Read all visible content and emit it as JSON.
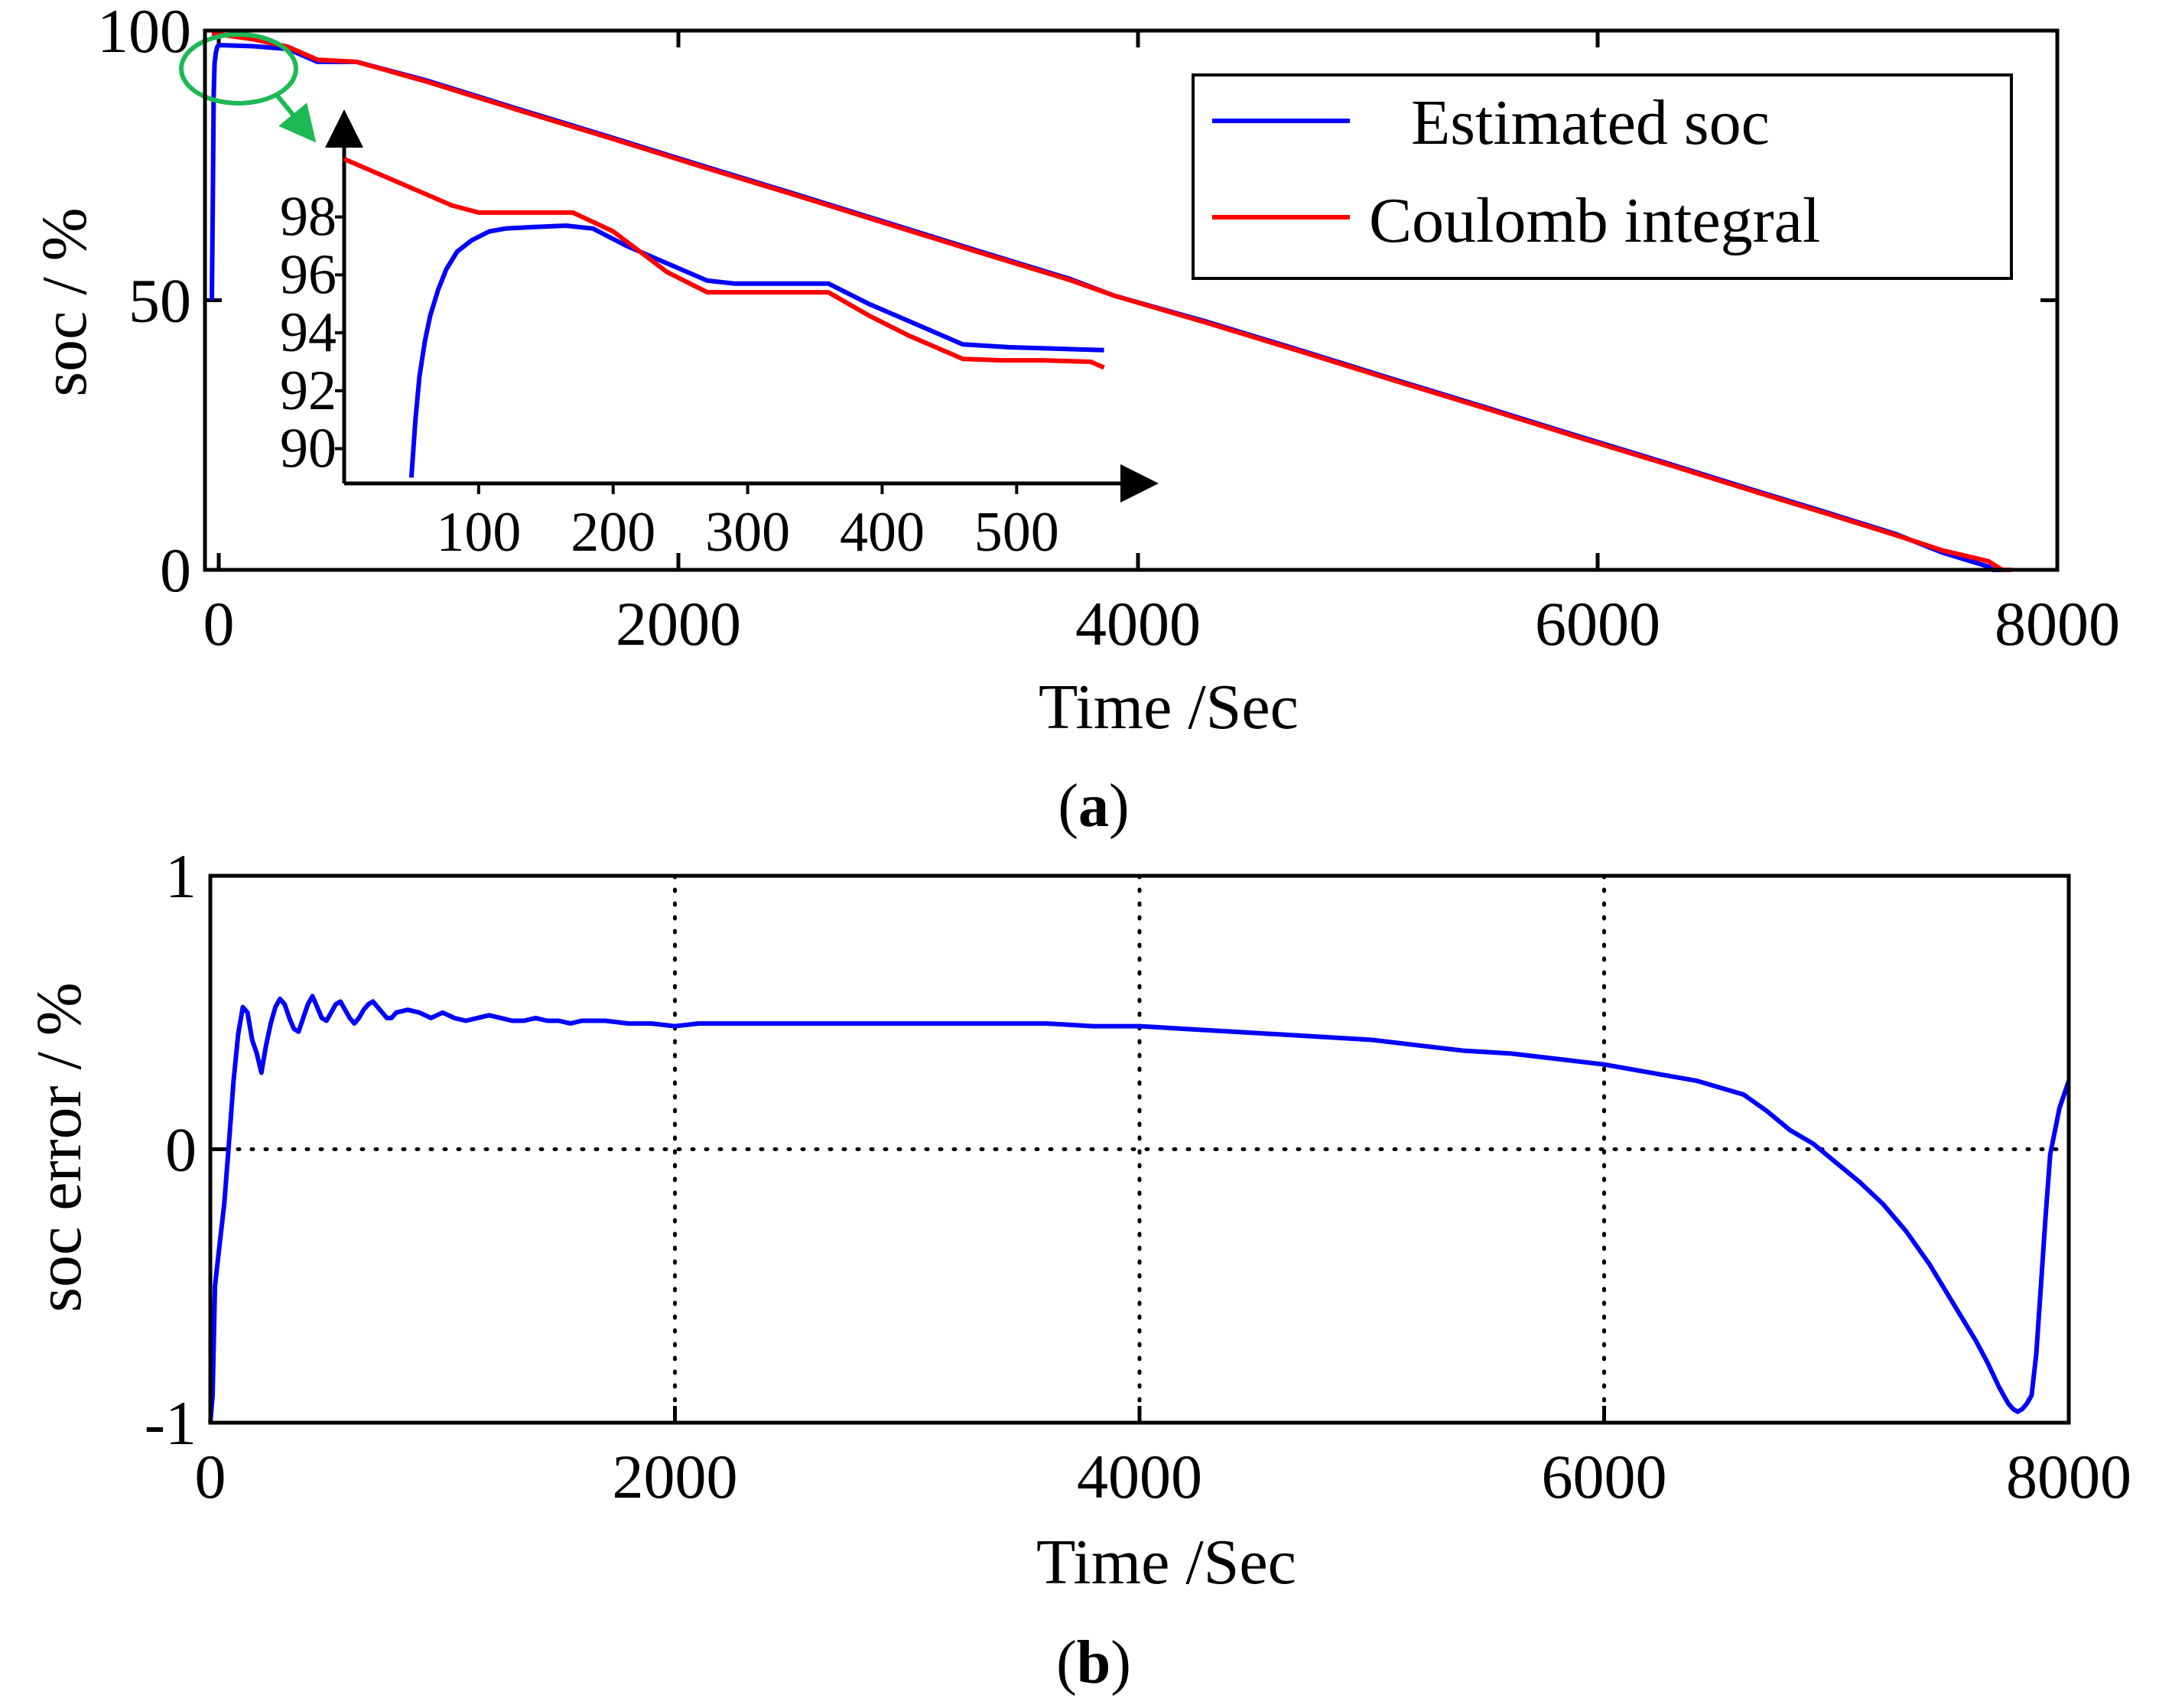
{
  "colors": {
    "estimated": "#0000ff",
    "coulomb": "#ff0000",
    "highlight": "#1db954",
    "axis": "#000000"
  },
  "chart_data": [
    {
      "id": "a",
      "type": "line",
      "caption_left": "(",
      "caption_letter": "a",
      "caption_right": ")",
      "xlabel": "Time /Sec",
      "ylabel": "soc / %",
      "xlim": [
        -60,
        8000
      ],
      "ylim": [
        0,
        100
      ],
      "xticks": [
        0,
        2000,
        4000,
        6000,
        8000
      ],
      "xtick_labels": [
        "0",
        "2000",
        "4000",
        "6000",
        "8000"
      ],
      "yticks": [
        0,
        50,
        100
      ],
      "ytick_labels": [
        "0",
        "50",
        "100"
      ],
      "legend_position": "top-right",
      "series": [
        {
          "name": "Estimated soc",
          "color_key": "estimated",
          "x": [
            -30,
            -25,
            -22,
            -18,
            -12,
            -6,
            0,
            150,
            300,
            430,
            600,
            900,
            1300,
            1700,
            2100,
            2500,
            2900,
            3300,
            3700,
            3900,
            4300,
            4700,
            5100,
            5500,
            5900,
            6300,
            6700,
            7000,
            7300,
            7500,
            7700,
            7720,
            7800
          ],
          "y": [
            50,
            72,
            88,
            94,
            96,
            97,
            97.3,
            97.1,
            96.6,
            94.2,
            94.2,
            90.8,
            85.5,
            80.3,
            75.0,
            69.8,
            64.5,
            59.2,
            54.0,
            50.8,
            46.0,
            40.8,
            35.5,
            30.3,
            25.0,
            19.8,
            14.5,
            10.6,
            6.6,
            3.2,
            0.6,
            0.0,
            0.0
          ]
        },
        {
          "name": "Coulomb integral",
          "color_key": "coulomb",
          "x": [
            -30,
            0,
            150,
            300,
            430,
            600,
            900,
            1300,
            1700,
            2100,
            2500,
            2900,
            3300,
            3700,
            3900,
            4300,
            4700,
            5100,
            5500,
            5900,
            6300,
            6700,
            7000,
            7300,
            7500,
            7700,
            7760,
            7800
          ],
          "y": [
            99.5,
            99.3,
            98.4,
            97.0,
            94.6,
            94.2,
            90.6,
            85.3,
            80.1,
            74.8,
            69.6,
            64.3,
            59.0,
            53.8,
            50.8,
            45.8,
            40.6,
            35.3,
            30.1,
            24.8,
            19.6,
            14.3,
            10.4,
            6.4,
            3.6,
            1.6,
            0.0,
            0.0
          ]
        }
      ],
      "inset": {
        "xlim": [
          0,
          580
        ],
        "ylim": [
          88.8,
          101.0
        ],
        "xticks": [
          100,
          200,
          300,
          400,
          500
        ],
        "xtick_labels": [
          "100",
          "200",
          "300",
          "400",
          "500"
        ],
        "yticks": [
          90,
          92,
          94,
          96,
          98
        ],
        "ytick_labels": [
          "90",
          "92",
          "94",
          "96",
          "98"
        ],
        "series": [
          {
            "name": "Estimated soc",
            "color_key": "estimated",
            "x": [
              50,
              53,
              56,
              60,
              64,
              70,
              76,
              84,
              95,
              108,
              120,
              140,
              165,
              185,
              210,
              240,
              270,
              290,
              320,
              360,
              390,
              420,
              460,
              495,
              530,
              565
            ],
            "y": [
              89.0,
              91.0,
              92.5,
              93.7,
              94.6,
              95.5,
              96.2,
              96.8,
              97.2,
              97.5,
              97.6,
              97.65,
              97.7,
              97.6,
              97.0,
              96.4,
              95.8,
              95.7,
              95.7,
              95.7,
              95.0,
              94.4,
              93.6,
              93.5,
              93.45,
              93.4
            ]
          },
          {
            "name": "Coulomb integral",
            "color_key": "coulomb",
            "x": [
              0,
              30,
              60,
              80,
              100,
              120,
              140,
              170,
              200,
              240,
              270,
              290,
              320,
              360,
              390,
              420,
              460,
              490,
              520,
              555,
              565
            ],
            "y": [
              100.0,
              99.4,
              98.8,
              98.4,
              98.15,
              98.15,
              98.15,
              98.15,
              97.5,
              96.1,
              95.4,
              95.4,
              95.4,
              95.4,
              94.6,
              93.9,
              93.1,
              93.05,
              93.05,
              93.0,
              92.8
            ]
          }
        ]
      }
    },
    {
      "id": "b",
      "type": "line",
      "caption_left": "(",
      "caption_letter": "b",
      "caption_right": ")",
      "xlabel": "Time /Sec",
      "ylabel": "soc error / %",
      "xlim": [
        0,
        8000
      ],
      "ylim": [
        -1,
        1
      ],
      "xticks": [
        0,
        2000,
        4000,
        6000,
        8000
      ],
      "xtick_labels": [
        "0",
        "2000",
        "4000",
        "6000",
        "8000"
      ],
      "yticks": [
        -1,
        0,
        1
      ],
      "ytick_labels": [
        "-1",
        "0",
        "1"
      ],
      "grid": "dotted",
      "series": [
        {
          "name": "soc error",
          "color_key": "estimated",
          "x": [
            0,
            10,
            20,
            40,
            60,
            80,
            100,
            120,
            140,
            160,
            180,
            200,
            220,
            240,
            260,
            280,
            300,
            320,
            340,
            360,
            380,
            400,
            420,
            440,
            460,
            480,
            500,
            520,
            540,
            560,
            580,
            600,
            620,
            640,
            660,
            680,
            700,
            720,
            740,
            760,
            780,
            800,
            850,
            900,
            950,
            1000,
            1050,
            1100,
            1150,
            1200,
            1250,
            1300,
            1350,
            1400,
            1450,
            1500,
            1550,
            1600,
            1700,
            1800,
            1900,
            2000,
            2100,
            2200,
            2300,
            2400,
            2600,
            2800,
            3000,
            3200,
            3400,
            3600,
            3800,
            4000,
            4200,
            4400,
            4600,
            4800,
            5000,
            5200,
            5400,
            5600,
            5800,
            6000,
            6200,
            6400,
            6600,
            6700,
            6800,
            6900,
            7000,
            7100,
            7200,
            7300,
            7400,
            7500,
            7550,
            7600,
            7650,
            7700,
            7720,
            7740,
            7760,
            7780,
            7800,
            7820,
            7840,
            7860,
            7880,
            7900,
            7920,
            7960,
            8000
          ],
          "y": [
            -1.0,
            -0.9,
            -0.5,
            -0.35,
            -0.2,
            0.02,
            0.25,
            0.42,
            0.52,
            0.5,
            0.4,
            0.35,
            0.28,
            0.38,
            0.46,
            0.52,
            0.55,
            0.53,
            0.48,
            0.44,
            0.43,
            0.48,
            0.53,
            0.56,
            0.52,
            0.48,
            0.47,
            0.5,
            0.53,
            0.54,
            0.51,
            0.48,
            0.46,
            0.48,
            0.51,
            0.53,
            0.54,
            0.52,
            0.5,
            0.48,
            0.48,
            0.5,
            0.51,
            0.5,
            0.48,
            0.5,
            0.48,
            0.47,
            0.48,
            0.49,
            0.48,
            0.47,
            0.47,
            0.48,
            0.47,
            0.47,
            0.46,
            0.47,
            0.47,
            0.46,
            0.46,
            0.45,
            0.46,
            0.46,
            0.46,
            0.46,
            0.46,
            0.46,
            0.46,
            0.46,
            0.46,
            0.46,
            0.45,
            0.45,
            0.44,
            0.43,
            0.42,
            0.41,
            0.4,
            0.38,
            0.36,
            0.35,
            0.33,
            0.31,
            0.28,
            0.25,
            0.2,
            0.14,
            0.07,
            0.02,
            -0.05,
            -0.12,
            -0.2,
            -0.3,
            -0.42,
            -0.56,
            -0.63,
            -0.7,
            -0.78,
            -0.87,
            -0.9,
            -0.93,
            -0.95,
            -0.96,
            -0.95,
            -0.93,
            -0.9,
            -0.75,
            -0.5,
            -0.25,
            -0.02,
            0.15,
            0.25
          ]
        }
      ]
    }
  ],
  "legend": {
    "items": [
      {
        "label": "Estimated soc",
        "color_key": "estimated"
      },
      {
        "label": "Coulomb integral",
        "color_key": "coulomb"
      }
    ]
  }
}
